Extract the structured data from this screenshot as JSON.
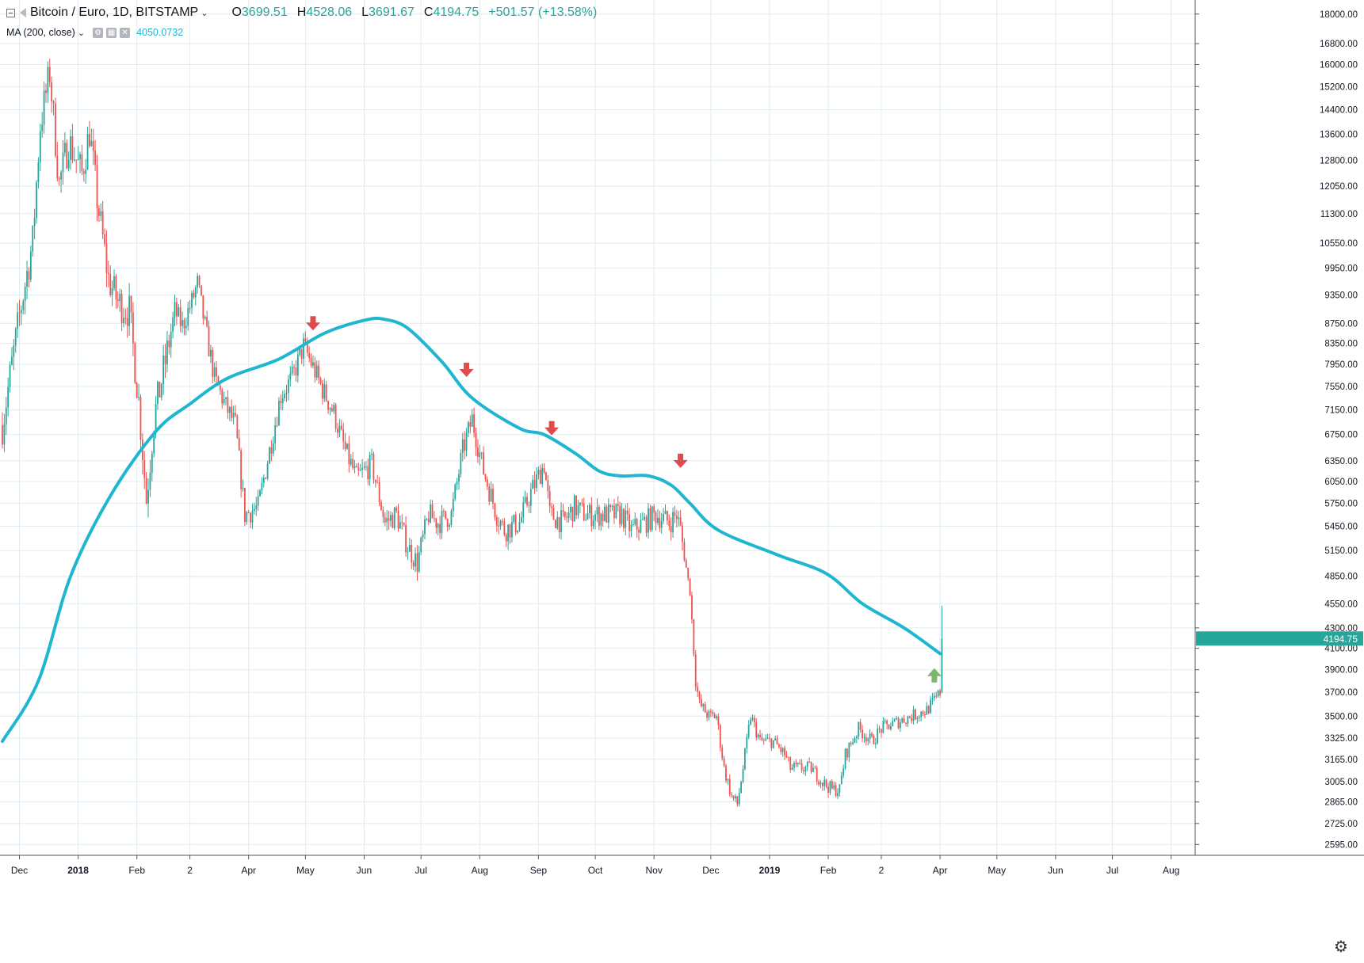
{
  "header": {
    "symbol": "Bitcoin / Euro, 1D, BITSTAMP",
    "open_label": "O",
    "open": "3699.51",
    "high_label": "H",
    "high": "4528.06",
    "low_label": "L",
    "low": "3691.67",
    "close_label": "C",
    "close": "4194.75",
    "change": "+501.57 (+13.58%)"
  },
  "indicator": {
    "name": "MA (200, close)",
    "value": "4050.0732"
  },
  "colors": {
    "up": "#26a69a",
    "down": "#ef5350",
    "ma": "#1fb6d0",
    "grid": "#e1ecf2",
    "arrow_down": "#e04b4b",
    "arrow_up": "#7cb86b",
    "price_tag": "#26a69a"
  },
  "chart_data": {
    "type": "candlestick",
    "y_scale": "log",
    "ylim": [
      2530,
      18600
    ],
    "y_ticks": [
      "2595.00",
      "2725.00",
      "2865.00",
      "3005.00",
      "3165.00",
      "3325.00",
      "3500.00",
      "3700.00",
      "3900.00",
      "4100.00",
      "4300.00",
      "4550.00",
      "4850.00",
      "5150.00",
      "5450.00",
      "5750.00",
      "6050.00",
      "6350.00",
      "6750.00",
      "7150.00",
      "7550.00",
      "7950.00",
      "8350.00",
      "8750.00",
      "9350.00",
      "9950.00",
      "10550.00",
      "11300.00",
      "12050.00",
      "12800.00",
      "13600.00",
      "14400.00",
      "15200.00",
      "16000.00",
      "16800.00",
      "18000.00"
    ],
    "x_ticks": [
      "Dec",
      "2018",
      "Feb",
      "2",
      "Apr",
      "May",
      "Jun",
      "Jul",
      "Aug",
      "Sep",
      "Oct",
      "Nov",
      "Dec",
      "2019",
      "Feb",
      "2",
      "Apr",
      "May",
      "Jun",
      "Jul",
      "Aug"
    ],
    "x_tick_dates": [
      "2017-12-01",
      "2018-01-01",
      "2018-02-01",
      "2018-03-01",
      "2018-04-01",
      "2018-05-01",
      "2018-06-01",
      "2018-07-01",
      "2018-08-01",
      "2018-09-01",
      "2018-10-01",
      "2018-11-01",
      "2018-12-01",
      "2019-01-01",
      "2019-02-01",
      "2019-03-01",
      "2019-04-01",
      "2019-05-01",
      "2019-06-01",
      "2019-07-01",
      "2019-08-01"
    ],
    "last_price": "4194.75",
    "anchors": {
      "dates": [
        "2017-11-22",
        "2017-12-01",
        "2017-12-08",
        "2017-12-12",
        "2017-12-17",
        "2017-12-22",
        "2017-12-27",
        "2018-01-03",
        "2018-01-07",
        "2018-01-11",
        "2018-01-17",
        "2018-01-22",
        "2018-01-28",
        "2018-02-02",
        "2018-02-06",
        "2018-02-10",
        "2018-02-16",
        "2018-02-21",
        "2018-02-25",
        "2018-03-02",
        "2018-03-05",
        "2018-03-08",
        "2018-03-14",
        "2018-03-20",
        "2018-03-25",
        "2018-03-30",
        "2018-04-06",
        "2018-04-12",
        "2018-04-18",
        "2018-04-24",
        "2018-04-30",
        "2018-05-05",
        "2018-05-10",
        "2018-05-16",
        "2018-05-22",
        "2018-05-28",
        "2018-06-05",
        "2018-06-12",
        "2018-06-18",
        "2018-06-24",
        "2018-06-29",
        "2018-07-05",
        "2018-07-10",
        "2018-07-17",
        "2018-07-23",
        "2018-07-28",
        "2018-08-03",
        "2018-08-10",
        "2018-08-14",
        "2018-08-22",
        "2018-08-28",
        "2018-09-04",
        "2018-09-07",
        "2018-09-14",
        "2018-09-20",
        "2018-09-26",
        "2018-10-02",
        "2018-10-10",
        "2018-10-15",
        "2018-10-20",
        "2018-10-27",
        "2018-11-02",
        "2018-11-09",
        "2018-11-13",
        "2018-11-15",
        "2018-11-19",
        "2018-11-20",
        "2018-11-23",
        "2018-11-25",
        "2018-11-30",
        "2018-12-04",
        "2018-12-08",
        "2018-12-12",
        "2018-12-15",
        "2018-12-18",
        "2018-12-22",
        "2018-12-27",
        "2019-01-03",
        "2019-01-09",
        "2019-01-12",
        "2019-01-17",
        "2019-01-23",
        "2019-01-29",
        "2019-02-03",
        "2019-02-07",
        "2019-02-10",
        "2019-02-17",
        "2019-02-24",
        "2019-03-01",
        "2019-03-09",
        "2019-03-17",
        "2019-03-25",
        "2019-03-30",
        "2019-04-01",
        "2019-04-02"
      ],
      "closes": [
        6900,
        8900,
        10600,
        13900,
        15700,
        12100,
        13400,
        12400,
        13700,
        11700,
        9700,
        9200,
        9000,
        7300,
        5800,
        7000,
        8000,
        9000,
        8700,
        9200,
        9600,
        8900,
        7700,
        7200,
        6900,
        5600,
        5700,
        6500,
        7400,
        7700,
        8300,
        7900,
        7500,
        7100,
        6500,
        6100,
        6300,
        5500,
        5600,
        5200,
        5000,
        5600,
        5500,
        5600,
        6500,
        7000,
        6200,
        5600,
        5400,
        5500,
        5900,
        6300,
        5600,
        5500,
        5700,
        5600,
        5600,
        5600,
        5600,
        5400,
        5500,
        5600,
        5500,
        5600,
        5400,
        4800,
        4700,
        3800,
        3600,
        3500,
        3500,
        3100,
        2900,
        2850,
        3100,
        3500,
        3300,
        3300,
        3200,
        3100,
        3100,
        3100,
        3000,
        2950,
        2950,
        3200,
        3400,
        3300,
        3400,
        3450,
        3500,
        3550,
        3650,
        3700,
        4194.75
      ]
    },
    "moving_average": {
      "name": "MA (200, close)",
      "dates": [
        "2017-11-22",
        "2017-12-11",
        "2017-12-28",
        "2018-01-18",
        "2018-02-11",
        "2018-03-01",
        "2018-03-21",
        "2018-04-17",
        "2018-05-11",
        "2018-06-02",
        "2018-06-12",
        "2018-06-24",
        "2018-07-12",
        "2018-07-28",
        "2018-08-22",
        "2018-09-04",
        "2018-09-21",
        "2018-10-03",
        "2018-10-14",
        "2018-10-29",
        "2018-11-10",
        "2018-11-20",
        "2018-12-05",
        "2019-01-05",
        "2019-01-31",
        "2019-02-19",
        "2019-03-13",
        "2019-04-01"
      ],
      "values": [
        3300,
        3800,
        4850,
        5850,
        6800,
        7250,
        7700,
        8050,
        8550,
        8820,
        8830,
        8650,
        8000,
        7350,
        6850,
        6750,
        6450,
        6200,
        6130,
        6130,
        6000,
        5750,
        5400,
        5100,
        4880,
        4550,
        4300,
        4050
      ]
    },
    "annotations": [
      {
        "type": "arrow-down",
        "date": "2018-05-05",
        "price": 8750
      },
      {
        "type": "arrow-down",
        "date": "2018-07-25",
        "price": 7850
      },
      {
        "type": "arrow-down",
        "date": "2018-09-08",
        "price": 6850
      },
      {
        "type": "arrow-down",
        "date": "2018-11-15",
        "price": 6350
      },
      {
        "type": "arrow-up",
        "date": "2019-03-29",
        "price": 3850
      }
    ]
  }
}
